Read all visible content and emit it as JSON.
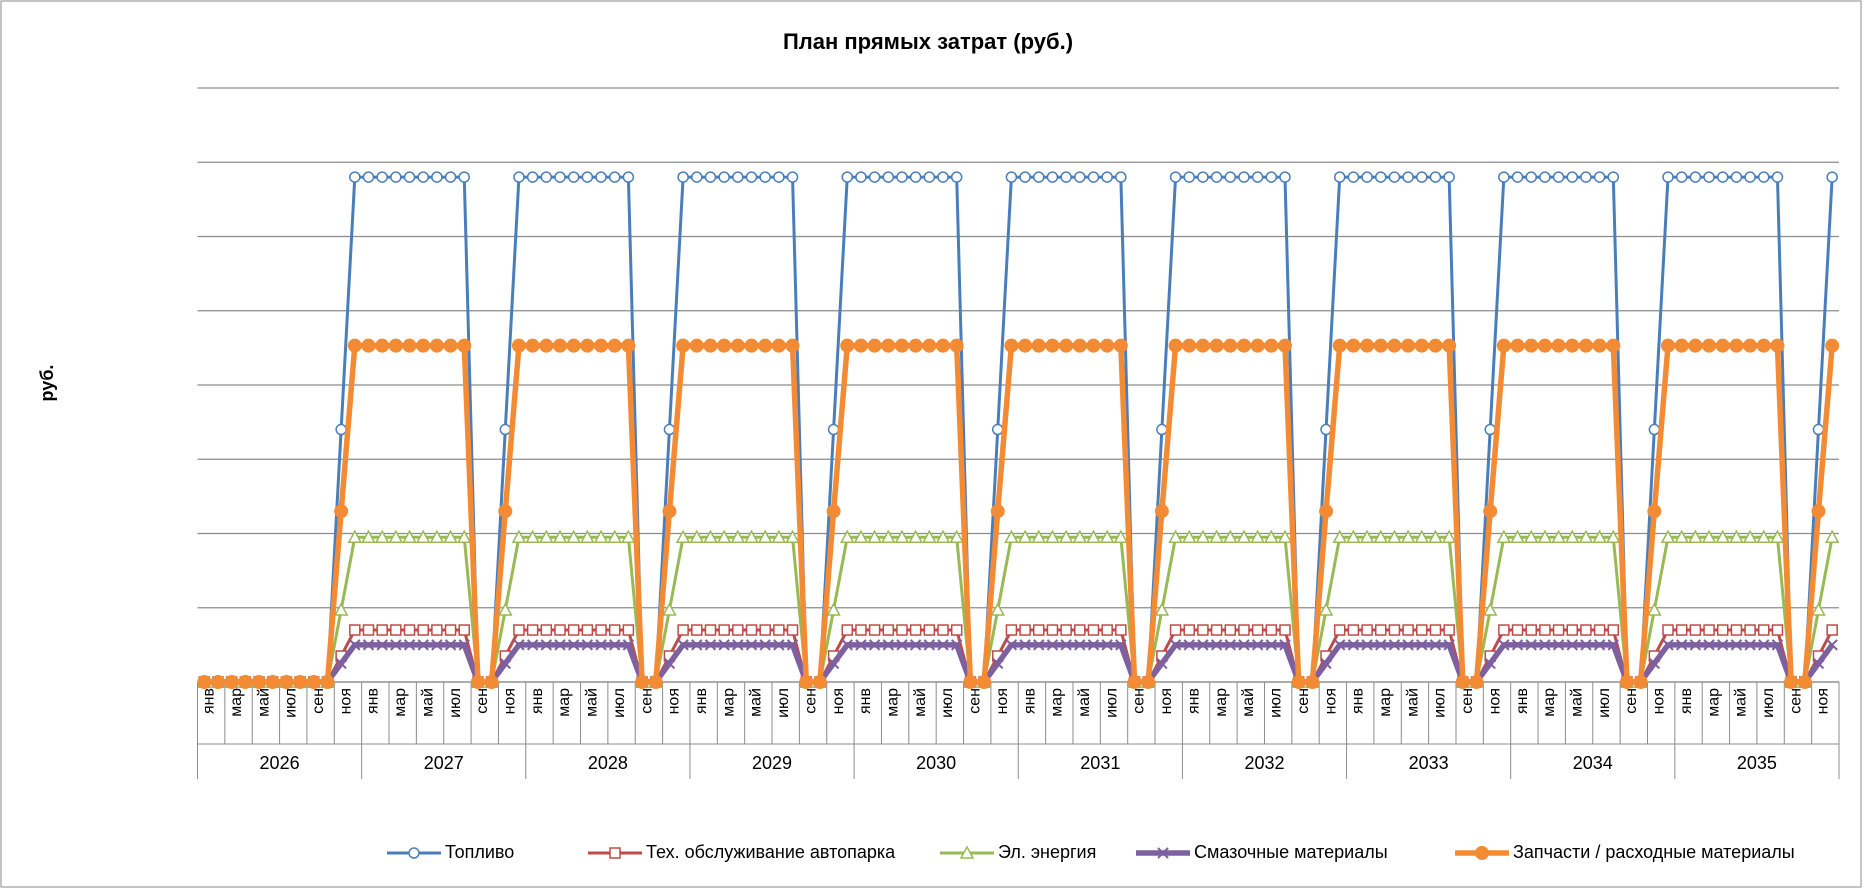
{
  "chart_data": {
    "type": "line",
    "title": "План прямых затрат (руб.)",
    "y_label": "руб.",
    "categories": [
      "янв",
      null,
      "мар",
      null,
      "май",
      null,
      "июл",
      null,
      "сен",
      null,
      "ноя",
      null,
      "янв",
      null,
      "мар",
      null,
      "май",
      null,
      "июл",
      null,
      "сен",
      null,
      "ноя",
      null,
      "янв",
      null,
      "мар",
      null,
      "май",
      null,
      "июл",
      null,
      "сен",
      null,
      "ноя",
      null,
      "янв",
      null,
      "мар",
      null,
      "май",
      null,
      "июл",
      null,
      "сен",
      null,
      "ноя",
      null,
      "янв",
      null,
      "мар",
      null,
      "май",
      null,
      "июл",
      null,
      "сен",
      null,
      "ноя",
      null,
      "янв",
      null,
      "мар",
      null,
      "май",
      null,
      "июл",
      null,
      "сен",
      null,
      "ноя",
      null,
      "янв",
      null,
      "мар",
      null,
      "май",
      null,
      "июл",
      null,
      "сен",
      null,
      "ноя",
      null,
      "янв",
      null,
      "мар",
      null,
      "май",
      null,
      "июл",
      null,
      "сен",
      null,
      "ноя",
      null,
      "янв",
      null,
      "мар",
      null,
      "май",
      null,
      "июл",
      null,
      "сен",
      null,
      "ноя",
      null,
      "янв",
      null,
      "мар",
      null,
      "май",
      null,
      "июл",
      null,
      "сен",
      null,
      "ноя",
      null
    ],
    "year_groups": [
      "2026",
      "2027",
      "2028",
      "2029",
      "2030",
      "2031",
      "2032",
      "2033",
      "2034",
      "2035"
    ],
    "ylim": [
      0,
      8
    ],
    "yticks": [
      0,
      1,
      2,
      3,
      4,
      5,
      6,
      7,
      8
    ],
    "grid": true,
    "legend": "bottom",
    "series": [
      {
        "name": "Топливо",
        "color": "#4a7ebb",
        "marker": "circle",
        "values": [
          0,
          0,
          0,
          0,
          0,
          0,
          0,
          0,
          0,
          0,
          3.4,
          6.8,
          6.8,
          6.8,
          6.8,
          6.8,
          6.8,
          6.8,
          6.8,
          6.8,
          0,
          0,
          3.4,
          6.8,
          6.8,
          6.8,
          6.8,
          6.8,
          6.8,
          6.8,
          6.8,
          6.8,
          0,
          0,
          3.4,
          6.8,
          6.8,
          6.8,
          6.8,
          6.8,
          6.8,
          6.8,
          6.8,
          6.8,
          0,
          0,
          3.4,
          6.8,
          6.8,
          6.8,
          6.8,
          6.8,
          6.8,
          6.8,
          6.8,
          6.8,
          0,
          0,
          3.4,
          6.8,
          6.8,
          6.8,
          6.8,
          6.8,
          6.8,
          6.8,
          6.8,
          6.8,
          0,
          0,
          3.4,
          6.8,
          6.8,
          6.8,
          6.8,
          6.8,
          6.8,
          6.8,
          6.8,
          6.8,
          0,
          0,
          3.4,
          6.8,
          6.8,
          6.8,
          6.8,
          6.8,
          6.8,
          6.8,
          6.8,
          6.8,
          0,
          0,
          3.4,
          6.8,
          6.8,
          6.8,
          6.8,
          6.8,
          6.8,
          6.8,
          6.8,
          6.8,
          0,
          0,
          3.4,
          6.8,
          6.8,
          6.8,
          6.8,
          6.8,
          6.8,
          6.8,
          6.8,
          6.8,
          0,
          0,
          3.4,
          6.8
        ]
      },
      {
        "name": "Тех. обслуживание автопарка",
        "color": "#be4b48",
        "marker": "square",
        "values": [
          0,
          0,
          0,
          0,
          0,
          0,
          0,
          0,
          0,
          0,
          0.35,
          0.7,
          0.7,
          0.7,
          0.7,
          0.7,
          0.7,
          0.7,
          0.7,
          0.7,
          0,
          0,
          0.35,
          0.7,
          0.7,
          0.7,
          0.7,
          0.7,
          0.7,
          0.7,
          0.7,
          0.7,
          0,
          0,
          0.35,
          0.7,
          0.7,
          0.7,
          0.7,
          0.7,
          0.7,
          0.7,
          0.7,
          0.7,
          0,
          0,
          0.35,
          0.7,
          0.7,
          0.7,
          0.7,
          0.7,
          0.7,
          0.7,
          0.7,
          0.7,
          0,
          0,
          0.35,
          0.7,
          0.7,
          0.7,
          0.7,
          0.7,
          0.7,
          0.7,
          0.7,
          0.7,
          0,
          0,
          0.35,
          0.7,
          0.7,
          0.7,
          0.7,
          0.7,
          0.7,
          0.7,
          0.7,
          0.7,
          0,
          0,
          0.35,
          0.7,
          0.7,
          0.7,
          0.7,
          0.7,
          0.7,
          0.7,
          0.7,
          0.7,
          0,
          0,
          0.35,
          0.7,
          0.7,
          0.7,
          0.7,
          0.7,
          0.7,
          0.7,
          0.7,
          0.7,
          0,
          0,
          0.35,
          0.7,
          0.7,
          0.7,
          0.7,
          0.7,
          0.7,
          0.7,
          0.7,
          0.7,
          0,
          0,
          0.35,
          0.7
        ]
      },
      {
        "name": "Эл. энергия",
        "color": "#98b954",
        "marker": "triangle",
        "values": [
          0,
          0,
          0,
          0,
          0,
          0,
          0,
          0,
          0,
          0,
          0.97,
          1.95,
          1.95,
          1.95,
          1.95,
          1.95,
          1.95,
          1.95,
          1.95,
          1.95,
          0,
          0,
          0.97,
          1.95,
          1.95,
          1.95,
          1.95,
          1.95,
          1.95,
          1.95,
          1.95,
          1.95,
          0,
          0,
          0.97,
          1.95,
          1.95,
          1.95,
          1.95,
          1.95,
          1.95,
          1.95,
          1.95,
          1.95,
          0,
          0,
          0.97,
          1.95,
          1.95,
          1.95,
          1.95,
          1.95,
          1.95,
          1.95,
          1.95,
          1.95,
          0,
          0,
          0.97,
          1.95,
          1.95,
          1.95,
          1.95,
          1.95,
          1.95,
          1.95,
          1.95,
          1.95,
          0,
          0,
          0.97,
          1.95,
          1.95,
          1.95,
          1.95,
          1.95,
          1.95,
          1.95,
          1.95,
          1.95,
          0,
          0,
          0.97,
          1.95,
          1.95,
          1.95,
          1.95,
          1.95,
          1.95,
          1.95,
          1.95,
          1.95,
          0,
          0,
          0.97,
          1.95,
          1.95,
          1.95,
          1.95,
          1.95,
          1.95,
          1.95,
          1.95,
          1.95,
          0,
          0,
          0.97,
          1.95,
          1.95,
          1.95,
          1.95,
          1.95,
          1.95,
          1.95,
          1.95,
          1.95,
          0,
          0,
          0.97,
          1.95
        ]
      },
      {
        "name": "Смазочные материалы",
        "color": "#7d60a0",
        "marker": "x",
        "values": [
          0,
          0,
          0,
          0,
          0,
          0,
          0,
          0,
          0,
          0,
          0.25,
          0.5,
          0.5,
          0.5,
          0.5,
          0.5,
          0.5,
          0.5,
          0.5,
          0.5,
          0,
          0,
          0.25,
          0.5,
          0.5,
          0.5,
          0.5,
          0.5,
          0.5,
          0.5,
          0.5,
          0.5,
          0,
          0,
          0.25,
          0.5,
          0.5,
          0.5,
          0.5,
          0.5,
          0.5,
          0.5,
          0.5,
          0.5,
          0,
          0,
          0.25,
          0.5,
          0.5,
          0.5,
          0.5,
          0.5,
          0.5,
          0.5,
          0.5,
          0.5,
          0,
          0,
          0.25,
          0.5,
          0.5,
          0.5,
          0.5,
          0.5,
          0.5,
          0.5,
          0.5,
          0.5,
          0,
          0,
          0.25,
          0.5,
          0.5,
          0.5,
          0.5,
          0.5,
          0.5,
          0.5,
          0.5,
          0.5,
          0,
          0,
          0.25,
          0.5,
          0.5,
          0.5,
          0.5,
          0.5,
          0.5,
          0.5,
          0.5,
          0.5,
          0,
          0,
          0.25,
          0.5,
          0.5,
          0.5,
          0.5,
          0.5,
          0.5,
          0.5,
          0.5,
          0.5,
          0,
          0,
          0.25,
          0.5,
          0.5,
          0.5,
          0.5,
          0.5,
          0.5,
          0.5,
          0.5,
          0.5,
          0,
          0,
          0.25,
          0.5
        ]
      },
      {
        "name": "Запчасти / расходные материалы",
        "color": "#f38b35",
        "marker": "dot",
        "values": [
          0,
          0,
          0,
          0,
          0,
          0,
          0,
          0,
          0,
          0,
          2.3,
          4.53,
          4.53,
          4.53,
          4.53,
          4.53,
          4.53,
          4.53,
          4.53,
          4.53,
          0,
          0,
          2.3,
          4.53,
          4.53,
          4.53,
          4.53,
          4.53,
          4.53,
          4.53,
          4.53,
          4.53,
          0,
          0,
          2.3,
          4.53,
          4.53,
          4.53,
          4.53,
          4.53,
          4.53,
          4.53,
          4.53,
          4.53,
          0,
          0,
          2.3,
          4.53,
          4.53,
          4.53,
          4.53,
          4.53,
          4.53,
          4.53,
          4.53,
          4.53,
          0,
          0,
          2.3,
          4.53,
          4.53,
          4.53,
          4.53,
          4.53,
          4.53,
          4.53,
          4.53,
          4.53,
          0,
          0,
          2.3,
          4.53,
          4.53,
          4.53,
          4.53,
          4.53,
          4.53,
          4.53,
          4.53,
          4.53,
          0,
          0,
          2.3,
          4.53,
          4.53,
          4.53,
          4.53,
          4.53,
          4.53,
          4.53,
          4.53,
          4.53,
          0,
          0,
          2.3,
          4.53,
          4.53,
          4.53,
          4.53,
          4.53,
          4.53,
          4.53,
          4.53,
          4.53,
          0,
          0,
          2.3,
          4.53,
          4.53,
          4.53,
          4.53,
          4.53,
          4.53,
          4.53,
          4.53,
          4.53,
          0,
          0,
          2.3,
          4.53
        ]
      }
    ]
  }
}
